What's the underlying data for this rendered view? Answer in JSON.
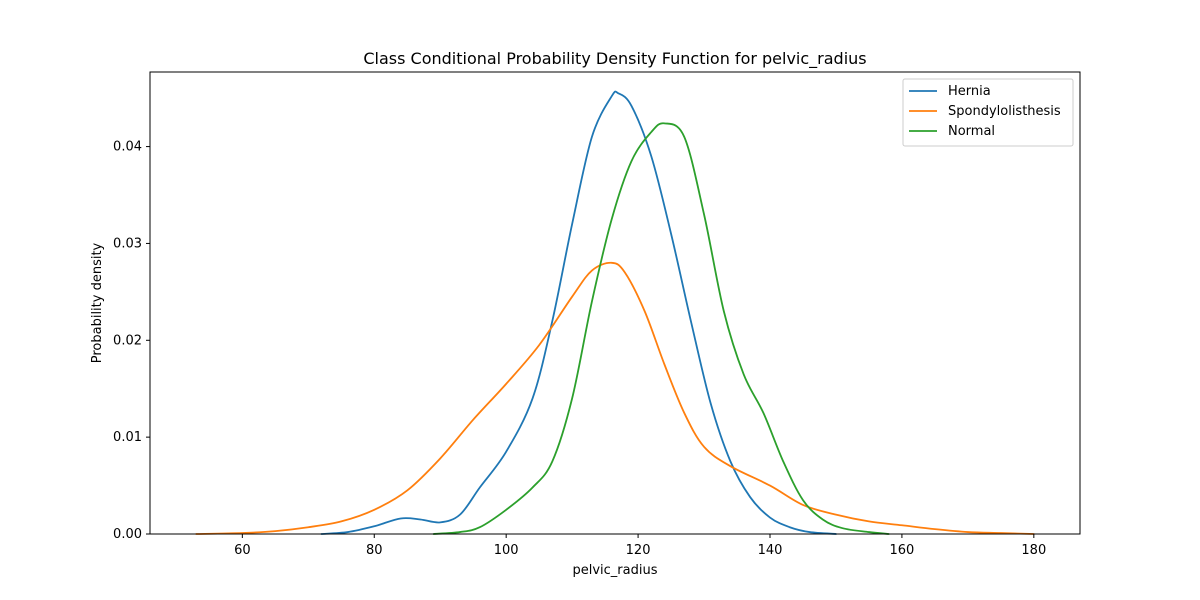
{
  "chart_data": {
    "type": "line",
    "title": "Class Conditional Probability Density Function for pelvic_radius",
    "xlabel": "pelvic_radius",
    "ylabel": "Probability density",
    "xlim": [
      46,
      187
    ],
    "ylim": [
      0,
      0.0477
    ],
    "xticks": [
      60,
      80,
      100,
      120,
      140,
      160,
      180
    ],
    "yticks": [
      0.0,
      0.01,
      0.02,
      0.03,
      0.04
    ],
    "xtick_labels": [
      "60",
      "80",
      "100",
      "120",
      "140",
      "160",
      "180"
    ],
    "ytick_labels": [
      "0.00",
      "0.01",
      "0.02",
      "0.03",
      "0.04"
    ],
    "legend_position": "top-right",
    "grid": false,
    "series": [
      {
        "name": "Hernia",
        "color": "#1f77b4",
        "points": [
          [
            72,
            0.0
          ],
          [
            76,
            0.0002
          ],
          [
            80,
            0.0008
          ],
          [
            84,
            0.0016
          ],
          [
            87,
            0.0015
          ],
          [
            90,
            0.0012
          ],
          [
            93,
            0.002
          ],
          [
            96,
            0.0048
          ],
          [
            100,
            0.0085
          ],
          [
            104,
            0.014
          ],
          [
            107,
            0.022
          ],
          [
            110,
            0.032
          ],
          [
            113,
            0.041
          ],
          [
            116,
            0.0452
          ],
          [
            117,
            0.0455
          ],
          [
            119,
            0.0442
          ],
          [
            122,
            0.039
          ],
          [
            125,
            0.031
          ],
          [
            128,
            0.022
          ],
          [
            131,
            0.0135
          ],
          [
            134,
            0.0075
          ],
          [
            137,
            0.0038
          ],
          [
            140,
            0.0017
          ],
          [
            143,
            0.0007
          ],
          [
            146,
            0.0002
          ],
          [
            150,
            0.0
          ]
        ]
      },
      {
        "name": "Spondylolisthesis",
        "color": "#ff7f0e",
        "points": [
          [
            53,
            0.0
          ],
          [
            60,
            0.0001
          ],
          [
            65,
            0.0003
          ],
          [
            70,
            0.0007
          ],
          [
            75,
            0.0013
          ],
          [
            80,
            0.0025
          ],
          [
            85,
            0.0045
          ],
          [
            90,
            0.0078
          ],
          [
            95,
            0.0118
          ],
          [
            100,
            0.0155
          ],
          [
            105,
            0.0195
          ],
          [
            110,
            0.0245
          ],
          [
            113,
            0.0272
          ],
          [
            116,
            0.028
          ],
          [
            118,
            0.027
          ],
          [
            121,
            0.023
          ],
          [
            124,
            0.0175
          ],
          [
            127,
            0.0125
          ],
          [
            130,
            0.009
          ],
          [
            134,
            0.007
          ],
          [
            140,
            0.005
          ],
          [
            145,
            0.003
          ],
          [
            150,
            0.002
          ],
          [
            155,
            0.0013
          ],
          [
            160,
            0.0009
          ],
          [
            165,
            0.0005
          ],
          [
            170,
            0.0002
          ],
          [
            175,
            0.0001
          ],
          [
            180,
            0.0
          ]
        ]
      },
      {
        "name": "Normal",
        "color": "#2ca02c",
        "points": [
          [
            89,
            0.0
          ],
          [
            93,
            0.0002
          ],
          [
            96,
            0.0007
          ],
          [
            100,
            0.0025
          ],
          [
            104,
            0.0048
          ],
          [
            107,
            0.0075
          ],
          [
            110,
            0.014
          ],
          [
            113,
            0.024
          ],
          [
            116,
            0.0325
          ],
          [
            119,
            0.0385
          ],
          [
            122,
            0.0415
          ],
          [
            124,
            0.0424
          ],
          [
            127,
            0.041
          ],
          [
            130,
            0.033
          ],
          [
            133,
            0.023
          ],
          [
            136,
            0.0165
          ],
          [
            139,
            0.0125
          ],
          [
            142,
            0.0075
          ],
          [
            145,
            0.0035
          ],
          [
            148,
            0.0015
          ],
          [
            151,
            0.0006
          ],
          [
            155,
            0.0002
          ],
          [
            158,
            0.0
          ]
        ]
      }
    ]
  }
}
